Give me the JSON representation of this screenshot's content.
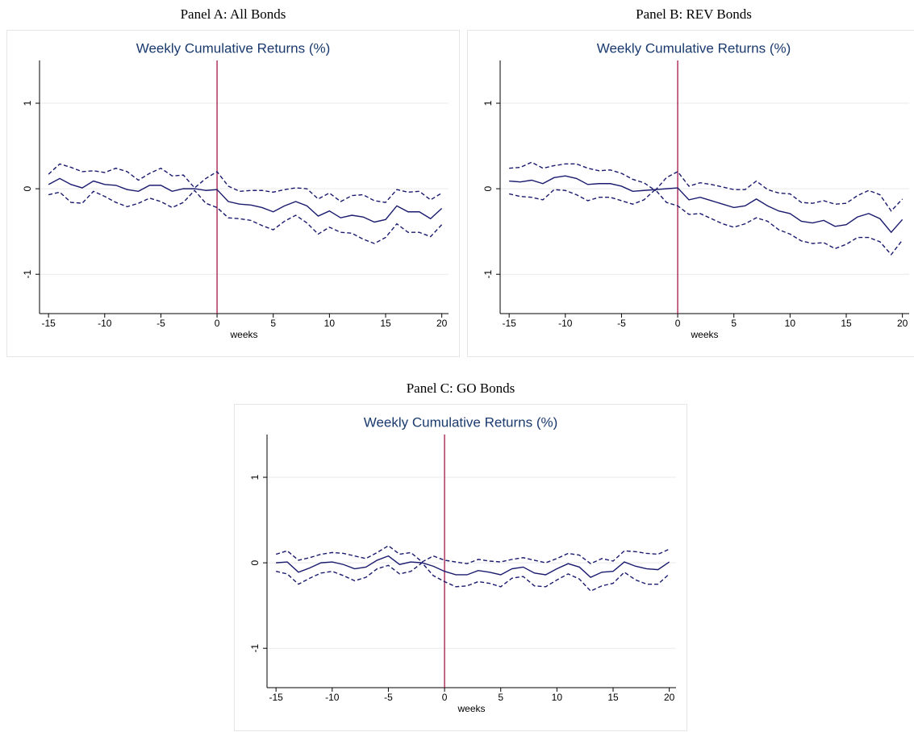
{
  "chart_data": [
    {
      "type": "line",
      "panel_title": "Panel A: All Bonds",
      "title": "Weekly Cumulative Returns (%)",
      "xlabel": "weeks",
      "x": [
        -15,
        -14,
        -13,
        -12,
        -11,
        -10,
        -9,
        -8,
        -7,
        -6,
        -5,
        -4,
        -3,
        -2,
        -1,
        0,
        1,
        2,
        3,
        4,
        5,
        6,
        7,
        8,
        9,
        10,
        11,
        12,
        13,
        14,
        15,
        16,
        17,
        18,
        19,
        20
      ],
      "series": [
        {
          "color": "#1a1a6e",
          "dashed": false,
          "values": [
            0.05,
            0.12,
            0.05,
            0.01,
            0.09,
            0.05,
            0.04,
            -0.01,
            -0.03,
            0.04,
            0.04,
            -0.03,
            0.0,
            0.0,
            -0.02,
            -0.01,
            -0.15,
            -0.18,
            -0.19,
            -0.22,
            -0.27,
            -0.2,
            -0.15,
            -0.2,
            -0.32,
            -0.26,
            -0.34,
            -0.31,
            -0.33,
            -0.39,
            -0.36,
            -0.2,
            -0.27,
            -0.27,
            -0.35,
            -0.23
          ]
        },
        {
          "color": "#1a1a6e",
          "dashed": true,
          "values": [
            0.17,
            0.29,
            0.25,
            0.2,
            0.21,
            0.19,
            0.24,
            0.2,
            0.1,
            0.18,
            0.24,
            0.15,
            0.16,
            0.01,
            0.12,
            0.2,
            0.03,
            -0.03,
            -0.02,
            -0.02,
            -0.04,
            -0.01,
            0.01,
            0.0,
            -0.12,
            -0.05,
            -0.15,
            -0.08,
            -0.07,
            -0.14,
            -0.16,
            -0.01,
            -0.04,
            -0.03,
            -0.13,
            -0.05
          ]
        },
        {
          "color": "#1a1a6e",
          "dashed": true,
          "values": [
            -0.07,
            -0.04,
            -0.16,
            -0.17,
            -0.03,
            -0.09,
            -0.16,
            -0.21,
            -0.17,
            -0.11,
            -0.15,
            -0.22,
            -0.16,
            -0.02,
            -0.17,
            -0.22,
            -0.34,
            -0.35,
            -0.37,
            -0.43,
            -0.48,
            -0.38,
            -0.31,
            -0.4,
            -0.53,
            -0.45,
            -0.51,
            -0.52,
            -0.59,
            -0.64,
            -0.57,
            -0.41,
            -0.51,
            -0.51,
            -0.56,
            -0.42
          ]
        }
      ],
      "vline": 0,
      "vline_color": "#a3174a",
      "xlim": [
        -15.8,
        20.6
      ],
      "xticks": [
        -15,
        -10,
        -5,
        0,
        5,
        10,
        15,
        20
      ],
      "ylim": [
        -1.46,
        1.5
      ],
      "yticks": [
        -1,
        0,
        1
      ],
      "grid": true
    },
    {
      "type": "line",
      "panel_title": "Panel B: REV Bonds",
      "title": "Weekly Cumulative Returns (%)",
      "xlabel": "weeks",
      "x": [
        -15,
        -14,
        -13,
        -12,
        -11,
        -10,
        -9,
        -8,
        -7,
        -6,
        -5,
        -4,
        -3,
        -2,
        -1,
        0,
        1,
        2,
        3,
        4,
        5,
        6,
        7,
        8,
        9,
        10,
        11,
        12,
        13,
        14,
        15,
        16,
        17,
        18,
        19,
        20
      ],
      "series": [
        {
          "color": "#1a1a6e",
          "dashed": false,
          "values": [
            0.09,
            0.08,
            0.1,
            0.06,
            0.13,
            0.15,
            0.12,
            0.05,
            0.06,
            0.06,
            0.03,
            -0.03,
            -0.02,
            -0.01,
            0.0,
            0.01,
            -0.13,
            -0.1,
            -0.14,
            -0.18,
            -0.22,
            -0.2,
            -0.12,
            -0.2,
            -0.26,
            -0.29,
            -0.38,
            -0.4,
            -0.37,
            -0.44,
            -0.42,
            -0.33,
            -0.29,
            -0.35,
            -0.51,
            -0.36
          ]
        },
        {
          "color": "#1a1a6e",
          "dashed": true,
          "values": [
            0.24,
            0.25,
            0.31,
            0.24,
            0.27,
            0.29,
            0.29,
            0.24,
            0.21,
            0.22,
            0.18,
            0.11,
            0.07,
            -0.02,
            0.13,
            0.2,
            0.03,
            0.07,
            0.05,
            0.02,
            -0.01,
            -0.01,
            0.09,
            -0.01,
            -0.05,
            -0.06,
            -0.16,
            -0.17,
            -0.14,
            -0.18,
            -0.17,
            -0.08,
            -0.02,
            -0.07,
            -0.26,
            -0.12
          ]
        },
        {
          "color": "#1a1a6e",
          "dashed": true,
          "values": [
            -0.06,
            -0.09,
            -0.1,
            -0.13,
            -0.01,
            -0.02,
            -0.07,
            -0.14,
            -0.1,
            -0.1,
            -0.14,
            -0.18,
            -0.13,
            -0.01,
            -0.16,
            -0.2,
            -0.3,
            -0.29,
            -0.35,
            -0.41,
            -0.45,
            -0.41,
            -0.34,
            -0.38,
            -0.48,
            -0.53,
            -0.61,
            -0.64,
            -0.63,
            -0.7,
            -0.65,
            -0.57,
            -0.57,
            -0.62,
            -0.77,
            -0.6
          ]
        }
      ],
      "vline": 0,
      "vline_color": "#a3174a",
      "xlim": [
        -15.8,
        20.6
      ],
      "xticks": [
        -15,
        -10,
        -5,
        0,
        5,
        10,
        15,
        20
      ],
      "ylim": [
        -1.46,
        1.5
      ],
      "yticks": [
        -1,
        0,
        1
      ],
      "grid": true
    },
    {
      "type": "line",
      "panel_title": "Panel C: GO Bonds",
      "title": "Weekly Cumulative Returns (%)",
      "xlabel": "weeks",
      "x": [
        -15,
        -14,
        -13,
        -12,
        -11,
        -10,
        -9,
        -8,
        -7,
        -6,
        -5,
        -4,
        -3,
        -2,
        -1,
        0,
        1,
        2,
        3,
        4,
        5,
        6,
        7,
        8,
        9,
        10,
        11,
        12,
        13,
        14,
        15,
        16,
        17,
        18,
        19,
        20
      ],
      "series": [
        {
          "color": "#1a1a6e",
          "dashed": false,
          "values": [
            0.0,
            0.01,
            -0.11,
            -0.06,
            0.0,
            0.01,
            -0.02,
            -0.07,
            -0.05,
            0.03,
            0.08,
            -0.02,
            0.01,
            0.0,
            -0.04,
            -0.1,
            -0.14,
            -0.14,
            -0.09,
            -0.11,
            -0.14,
            -0.07,
            -0.05,
            -0.12,
            -0.14,
            -0.07,
            -0.01,
            -0.05,
            -0.17,
            -0.11,
            -0.1,
            0.01,
            -0.04,
            -0.07,
            -0.08,
            0.01
          ]
        },
        {
          "color": "#1a1a6e",
          "dashed": true,
          "values": [
            0.1,
            0.14,
            0.03,
            0.06,
            0.1,
            0.12,
            0.11,
            0.08,
            0.05,
            0.12,
            0.2,
            0.1,
            0.12,
            0.01,
            0.08,
            0.03,
            0.01,
            -0.01,
            0.04,
            0.02,
            0.01,
            0.04,
            0.06,
            0.03,
            0.0,
            0.05,
            0.11,
            0.09,
            -0.01,
            0.05,
            0.02,
            0.14,
            0.13,
            0.11,
            0.1,
            0.16
          ]
        },
        {
          "color": "#1a1a6e",
          "dashed": true,
          "values": [
            -0.1,
            -0.13,
            -0.25,
            -0.18,
            -0.12,
            -0.1,
            -0.15,
            -0.21,
            -0.17,
            -0.07,
            -0.03,
            -0.13,
            -0.1,
            0.0,
            -0.15,
            -0.22,
            -0.28,
            -0.27,
            -0.22,
            -0.24,
            -0.28,
            -0.18,
            -0.16,
            -0.27,
            -0.28,
            -0.2,
            -0.13,
            -0.19,
            -0.33,
            -0.27,
            -0.24,
            -0.11,
            -0.2,
            -0.25,
            -0.25,
            -0.13
          ]
        }
      ],
      "vline": 0,
      "vline_color": "#a3174a",
      "xlim": [
        -15.8,
        20.6
      ],
      "xticks": [
        -15,
        -10,
        -5,
        0,
        5,
        10,
        15,
        20
      ],
      "ylim": [
        -1.46,
        1.5
      ],
      "yticks": [
        -1,
        0,
        1
      ],
      "grid": true
    }
  ]
}
